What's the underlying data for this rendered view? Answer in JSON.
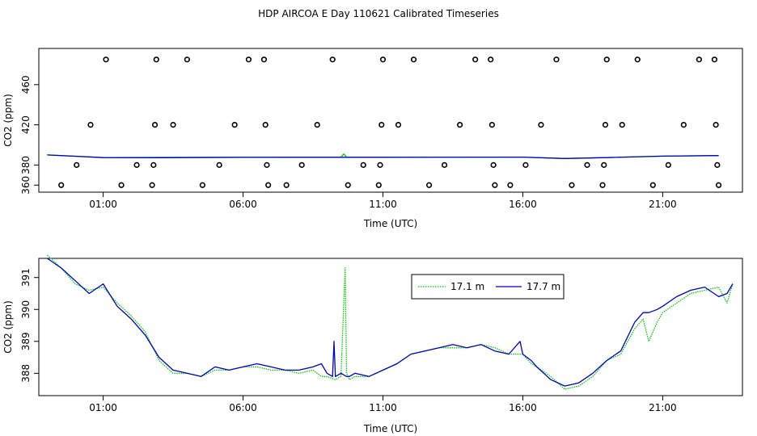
{
  "figure": {
    "title": "HDP AIRCOA E  Day 110621  Calibrated Timeseries"
  },
  "chart_data": [
    {
      "type": "scatter",
      "xlabel": "Time (UTC)",
      "ylabel": "CO2 (ppm)",
      "xlim": [
        -1.3,
        23.85
      ],
      "ylim": [
        353,
        496
      ],
      "xticks": [
        1,
        6,
        11,
        16,
        21
      ],
      "xtick_labels": [
        "01:00",
        "06:00",
        "11:00",
        "16:00",
        "21:00"
      ],
      "yticks": [
        360,
        380,
        420,
        460
      ],
      "ytick_labels": [
        "360",
        "380",
        "420",
        "460"
      ],
      "grid": false,
      "points": [
        [
          -0.5,
          360
        ],
        [
          0.05,
          380
        ],
        [
          0.55,
          420
        ],
        [
          1.1,
          485
        ],
        [
          1.65,
          360
        ],
        [
          2.2,
          380
        ],
        [
          2.75,
          360
        ],
        [
          2.8,
          380
        ],
        [
          2.85,
          420
        ],
        [
          2.9,
          485
        ],
        [
          3.5,
          420
        ],
        [
          4.0,
          485
        ],
        [
          4.55,
          360
        ],
        [
          5.15,
          380
        ],
        [
          5.7,
          420
        ],
        [
          6.2,
          485
        ],
        [
          6.75,
          485
        ],
        [
          6.8,
          420
        ],
        [
          6.85,
          380
        ],
        [
          6.9,
          360
        ],
        [
          7.55,
          360
        ],
        [
          8.1,
          380
        ],
        [
          8.65,
          420
        ],
        [
          9.2,
          485
        ],
        [
          9.75,
          360
        ],
        [
          10.3,
          380
        ],
        [
          10.85,
          360
        ],
        [
          10.9,
          380
        ],
        [
          10.95,
          420
        ],
        [
          11.0,
          485
        ],
        [
          11.55,
          420
        ],
        [
          12.1,
          485
        ],
        [
          12.65,
          360
        ],
        [
          13.2,
          380
        ],
        [
          13.75,
          420
        ],
        [
          14.3,
          485
        ],
        [
          14.85,
          485
        ],
        [
          14.9,
          420
        ],
        [
          14.95,
          380
        ],
        [
          15.0,
          360
        ],
        [
          15.55,
          360
        ],
        [
          16.1,
          380
        ],
        [
          16.65,
          420
        ],
        [
          17.2,
          485
        ],
        [
          17.75,
          360
        ],
        [
          18.3,
          380
        ],
        [
          18.85,
          360
        ],
        [
          18.9,
          380
        ],
        [
          18.95,
          420
        ],
        [
          19.0,
          485
        ],
        [
          19.55,
          420
        ],
        [
          20.1,
          485
        ],
        [
          20.65,
          360
        ],
        [
          21.2,
          380
        ],
        [
          21.75,
          420
        ],
        [
          22.3,
          485
        ],
        [
          22.85,
          485
        ],
        [
          22.9,
          420
        ],
        [
          22.95,
          380
        ],
        [
          23.0,
          360
        ]
      ],
      "series": [
        {
          "color": "#00cc00",
          "x": [
            -1.0,
            1,
            3,
            6,
            9,
            9.5,
            9.6,
            9.7,
            11,
            16,
            17.5,
            19,
            21,
            23.0
          ],
          "y": [
            390,
            387.5,
            387.6,
            387.8,
            387.8,
            387.9,
            391,
            387.9,
            387.8,
            387.9,
            386.5,
            387.5,
            388.8,
            389.5
          ]
        },
        {
          "color": "#0000cc",
          "x": [
            -1.0,
            1,
            3,
            6,
            9,
            11,
            16,
            17.5,
            19,
            21,
            23.0
          ],
          "y": [
            390,
            387.4,
            387.3,
            387.6,
            387.7,
            387.7,
            387.9,
            386.5,
            387.4,
            388.8,
            389.4
          ]
        }
      ]
    },
    {
      "type": "line",
      "xlabel": "Time (UTC)",
      "ylabel": "CO2 (ppm)",
      "xlim": [
        -1.3,
        23.85
      ],
      "ylim": [
        387.3,
        391.6
      ],
      "xticks": [
        1,
        6,
        11,
        16,
        21
      ],
      "xtick_labels": [
        "01:00",
        "06:00",
        "11:00",
        "16:00",
        "21:00"
      ],
      "yticks": [
        388,
        389,
        390,
        391
      ],
      "ytick_labels": [
        "388",
        "389",
        "390",
        "391"
      ],
      "grid": false,
      "legend": {
        "placement": "top-right"
      },
      "series": [
        {
          "name": "17.1 m",
          "color": "#00cc00",
          "style": "dotted",
          "x": [
            -1.0,
            -0.5,
            0.0,
            0.5,
            1.0,
            1.5,
            2.0,
            2.5,
            3.0,
            3.5,
            4.0,
            4.5,
            5.0,
            5.5,
            6.0,
            6.5,
            7.0,
            7.5,
            8.0,
            8.5,
            8.8,
            9.0,
            9.3,
            9.5,
            9.6,
            9.65,
            9.7,
            9.8,
            10.0,
            10.5,
            11.0,
            11.5,
            12.0,
            12.5,
            13.0,
            13.5,
            14.0,
            14.5,
            15.0,
            15.5,
            16.0,
            16.3,
            16.5,
            17.0,
            17.5,
            18.0,
            18.5,
            19.0,
            19.5,
            20.0,
            20.3,
            20.5,
            20.8,
            21.0,
            21.5,
            22.0,
            22.5,
            23.0,
            23.3,
            23.5
          ],
          "y": [
            391.7,
            391.3,
            390.8,
            390.6,
            390.7,
            390.2,
            389.8,
            389.3,
            388.4,
            388.0,
            388.0,
            387.9,
            388.1,
            388.1,
            388.2,
            388.2,
            388.1,
            388.1,
            388.0,
            388.1,
            387.9,
            387.9,
            387.8,
            387.9,
            390.2,
            391.3,
            388.0,
            387.8,
            387.9,
            387.9,
            388.1,
            388.3,
            388.6,
            388.7,
            388.8,
            388.8,
            388.8,
            388.9,
            388.8,
            388.6,
            388.6,
            388.3,
            388.2,
            387.9,
            387.5,
            387.6,
            387.9,
            388.4,
            388.6,
            389.4,
            389.7,
            389.0,
            389.6,
            389.9,
            390.2,
            390.5,
            390.6,
            390.7,
            390.2,
            390.8
          ]
        },
        {
          "name": "17.7 m",
          "color": "#0000cc",
          "style": "solid",
          "x": [
            -1.0,
            -0.5,
            0.0,
            0.5,
            1.0,
            1.5,
            2.0,
            2.5,
            3.0,
            3.5,
            4.0,
            4.5,
            5.0,
            5.5,
            6.0,
            6.5,
            7.0,
            7.5,
            8.0,
            8.5,
            8.8,
            9.0,
            9.2,
            9.25,
            9.3,
            9.5,
            9.7,
            9.8,
            10.0,
            10.5,
            11.0,
            11.5,
            12.0,
            12.5,
            13.0,
            13.5,
            14.0,
            14.5,
            15.0,
            15.5,
            15.9,
            16.0,
            16.3,
            16.5,
            17.0,
            17.5,
            18.0,
            18.5,
            19.0,
            19.5,
            20.0,
            20.3,
            20.5,
            20.8,
            21.0,
            21.5,
            22.0,
            22.5,
            23.0,
            23.3,
            23.5
          ],
          "y": [
            391.6,
            391.3,
            390.9,
            390.5,
            390.8,
            390.1,
            389.7,
            389.2,
            388.5,
            388.1,
            388.0,
            387.9,
            388.2,
            388.1,
            388.2,
            388.3,
            388.2,
            388.1,
            388.1,
            388.2,
            388.3,
            388.0,
            387.9,
            389.0,
            387.9,
            388.0,
            387.9,
            387.9,
            388.0,
            387.9,
            388.1,
            388.3,
            388.6,
            388.7,
            388.8,
            388.9,
            388.8,
            388.9,
            388.7,
            388.6,
            389.0,
            388.6,
            388.4,
            388.2,
            387.8,
            387.6,
            387.7,
            388.0,
            388.4,
            388.7,
            389.6,
            389.9,
            389.9,
            390.0,
            390.1,
            390.4,
            390.6,
            390.7,
            390.4,
            390.5,
            390.8
          ]
        }
      ]
    }
  ]
}
